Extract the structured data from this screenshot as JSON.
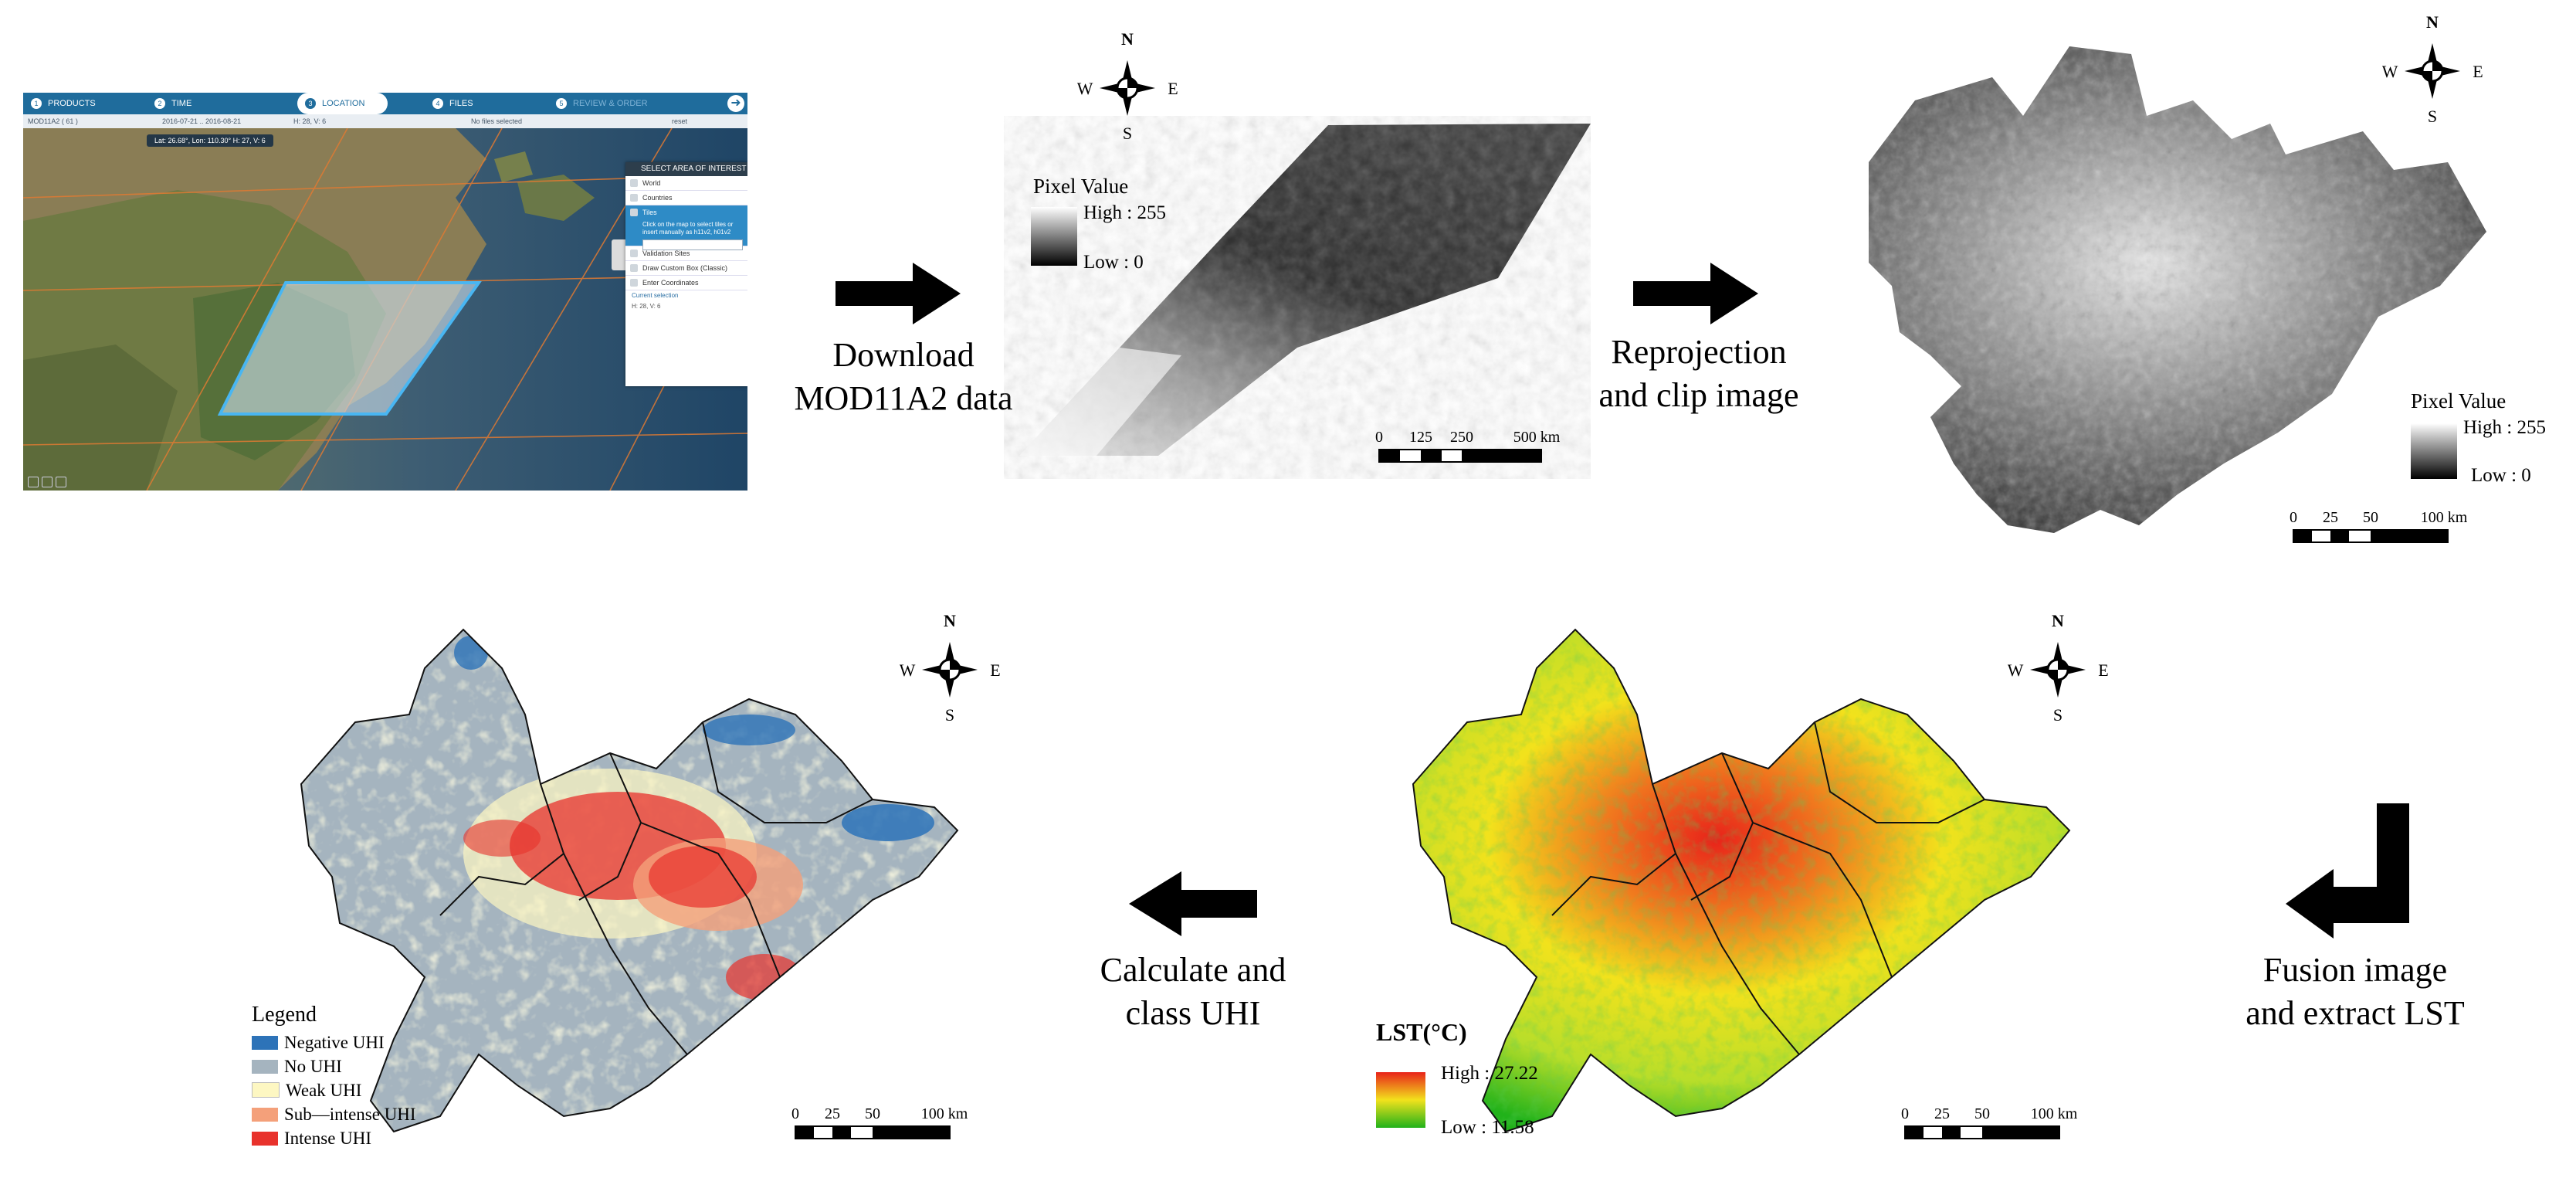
{
  "portal": {
    "steps": [
      {
        "num": "1",
        "label": "PRODUCTS"
      },
      {
        "num": "2",
        "label": "TIME"
      },
      {
        "num": "3",
        "label": "LOCATION"
      },
      {
        "num": "4",
        "label": "FILES"
      },
      {
        "num": "5",
        "label": "REVIEW & ORDER"
      }
    ],
    "info": {
      "product": "MOD11A2 ( 61 )",
      "dates": "2016-07-21 .. 2016-08-21",
      "tile": "H: 28, V: 6",
      "files": "No files selected",
      "reset": "reset"
    },
    "coord_readout": "Lat: 26.68°, Lon: 110.30°     H: 27, V: 6",
    "panel": {
      "title": "SELECT AREA OF INTEREST",
      "options": [
        "World",
        "Countries",
        "Tiles",
        "Validation Sites",
        "Draw Custom Box (Classic)",
        "Enter Coordinates"
      ],
      "tiles_note": "Click on the map to select tiles or insert manually as h11v2, h01v2",
      "current_selection_label": "Current selection",
      "current_selection_value": "H: 28, V: 6"
    },
    "next_icon": "arrow-right-icon"
  },
  "steps": {
    "download": [
      "Download",
      "MOD11A2 data"
    ],
    "reproject": [
      "Reprojection",
      "and clip image"
    ],
    "fusion": [
      "Fusion image",
      "and extract LST"
    ],
    "calculate": [
      "Calculate and",
      "class UHI"
    ]
  },
  "compass": {
    "n": "N",
    "s": "S",
    "w": "W",
    "e": "E"
  },
  "raw_tile": {
    "legend_title": "Pixel Value",
    "high": "High : 255",
    "low": "Low : 0",
    "scale_labels": [
      "0",
      "125",
      "250",
      "500 km"
    ]
  },
  "clipped": {
    "legend_title": "Pixel Value",
    "high": "High : 255",
    "low": "Low : 0",
    "scale_labels": [
      "0",
      "25",
      "50",
      "100 km"
    ]
  },
  "lst": {
    "legend_title": "LST(°C)",
    "high": "High : 27.22",
    "low": "Low : 11.58",
    "scale_labels": [
      "0",
      "25",
      "50",
      "100 km"
    ],
    "colors": {
      "high": "#e8231a",
      "mid": "#f2e21c",
      "low": "#21b21a"
    }
  },
  "uhi": {
    "legend_title": "Legend",
    "classes": [
      {
        "label": "Negative UHI",
        "color": "#2d73b8"
      },
      {
        "label": "No UHI",
        "color": "#a5b4bf"
      },
      {
        "label": "Weak UHI",
        "color": "#fdf7c2"
      },
      {
        "label": "Sub—intense UHI",
        "color": "#f4a07a"
      },
      {
        "label": "Intense UHI",
        "color": "#e8322c"
      }
    ],
    "scale_labels": [
      "0",
      "25",
      "50",
      "100 km"
    ]
  }
}
